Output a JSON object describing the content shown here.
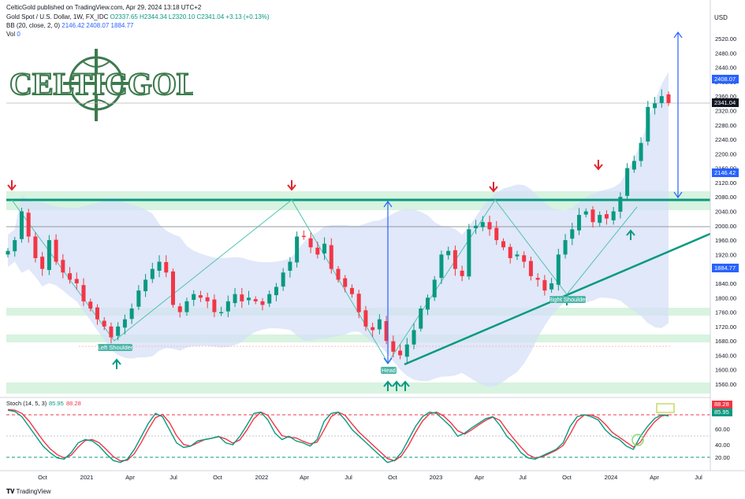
{
  "header": {
    "publisher_line": "CelticGold published on TradingView.com, Apr 29, 2024 13:18 UTC+2",
    "symbol": "Gold Spot / U.S. Dollar, 1W, FX_IDC",
    "ohlc": "O2337.65  H2344.34  L2320.10  C2341.04  +3.13 (+0.13%)",
    "bb_label": "BB (20, close, 2, 0)",
    "bb_values": "2146.42  2408.07  1884.77",
    "vol_label": "Vol",
    "vol_value": "0",
    "currency": "USD"
  },
  "logo": {
    "text": "CELTICGOLD"
  },
  "annotations": {
    "left_shoulder": "Left Shoulder",
    "head": "Head",
    "right_shoulder": "Right Shoulder"
  },
  "price_tags": {
    "upper_band": "2408.07",
    "last_price": "2341.04",
    "mid_band": "2146.42",
    "lower_band": "1884.77"
  },
  "stoch": {
    "label": "Stoch (14, 5, 3)",
    "k": "85.95",
    "d": "88.28"
  },
  "footer": {
    "brand": "TradingView"
  },
  "colors": {
    "up": "#089981",
    "down": "#f23645",
    "band": "#c9d6f5",
    "neckline": "#089981",
    "arrow_blue": "#2962ff"
  },
  "chart_data": [
    {
      "type": "candlestick",
      "title": "",
      "y_axis_ticks": [
        "2520.00",
        "2480.00",
        "2440.00",
        "2400.00",
        "2360.00",
        "2320.00",
        "2280.00",
        "2240.00",
        "2200.00",
        "2160.00",
        "2120.00",
        "2080.00",
        "2040.00",
        "2000.00",
        "1960.00",
        "1920.00",
        "1880.00",
        "1840.00",
        "1800.00",
        "1760.00",
        "1720.00",
        "1680.00",
        "1640.00",
        "1600.00",
        "1560.00"
      ],
      "ylim": [
        1530,
        2555
      ],
      "x_axis_ticks": [
        "Oct",
        "2021",
        "Apr",
        "Jul",
        "Oct",
        "2022",
        "Apr",
        "Jul",
        "Oct",
        "2023",
        "Apr",
        "Jul",
        "Oct",
        "2024",
        "Apr",
        "Jul"
      ],
      "approx_weekly_closes": [
        1930,
        1960,
        2040,
        1970,
        1910,
        1880,
        1960,
        1900,
        1870,
        1850,
        1840,
        1790,
        1770,
        1740,
        1720,
        1690,
        1720,
        1740,
        1770,
        1820,
        1850,
        1880,
        1900,
        1870,
        1780,
        1760,
        1790,
        1810,
        1800,
        1790,
        1760,
        1760,
        1790,
        1810,
        1790,
        1800,
        1790,
        1780,
        1810,
        1830,
        1870,
        1900,
        1970,
        1970,
        1940,
        1920,
        1950,
        1880,
        1850,
        1830,
        1810,
        1760,
        1720,
        1710,
        1740,
        1680,
        1650,
        1640,
        1670,
        1710,
        1770,
        1800,
        1850,
        1920,
        1930,
        1880,
        1860,
        1990,
        2000,
        2010,
        1990,
        1960,
        1940,
        1910,
        1920,
        1900,
        1860,
        1850,
        1820,
        1840,
        1920,
        1960,
        1990,
        2030,
        2040,
        2010,
        2030,
        2020,
        2040,
        2080,
        2160,
        2180,
        2230,
        2330,
        2340,
        2360,
        2341
      ],
      "bollinger_bands": {
        "upper_last": 2408.07,
        "mid_last": 2146.42,
        "lower_last": 1884.77
      },
      "horizontal_levels": [
        2075,
        2000,
        1770,
        1690,
        1560
      ],
      "neckline": 2075,
      "stochastic": {
        "k": 85.95,
        "d": 88.28,
        "levels": [
          80,
          50,
          20
        ]
      }
    }
  ]
}
